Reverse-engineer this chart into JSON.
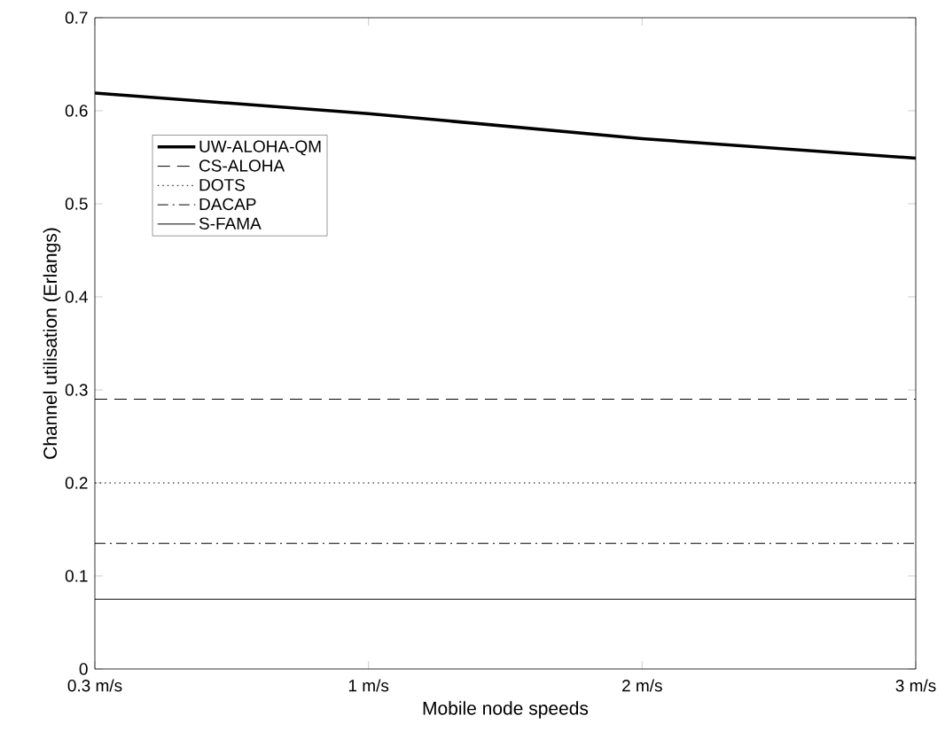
{
  "chart_data": {
    "type": "line",
    "xlabel": "Mobile node speeds",
    "ylabel": "Channel utilisation (Erlangs)",
    "categories": [
      "0.3 m/s",
      "1 m/s",
      "2 m/s",
      "3 m/s"
    ],
    "series": [
      {
        "name": "UW-ALOHA-QM",
        "color": "#000000",
        "line_style": "solid",
        "values": [
          0.619,
          0.597,
          0.57,
          0.549
        ]
      },
      {
        "name": "CS-ALOHA",
        "color": "#000000",
        "line_style": "dashed",
        "values": [
          0.29,
          0.29,
          0.29,
          0.29
        ]
      },
      {
        "name": "DOTS",
        "color": "#000000",
        "line_style": "dotted",
        "values": [
          0.2,
          0.2,
          0.2,
          0.2
        ]
      },
      {
        "name": "DACAP",
        "color": "#000000",
        "line_style": "dashdot",
        "values": [
          0.135,
          0.135,
          0.135,
          0.135
        ]
      },
      {
        "name": "S-FAMA",
        "color": "#000000",
        "line_style": "solid",
        "values": [
          0.075,
          0.075,
          0.075,
          0.075
        ]
      }
    ],
    "ylim": [
      0,
      0.7
    ],
    "yticks": [
      0,
      0.1,
      0.2,
      0.3,
      0.4,
      0.5,
      0.6,
      0.7
    ],
    "grid": false,
    "legend": "top left",
    "marker": "none"
  }
}
